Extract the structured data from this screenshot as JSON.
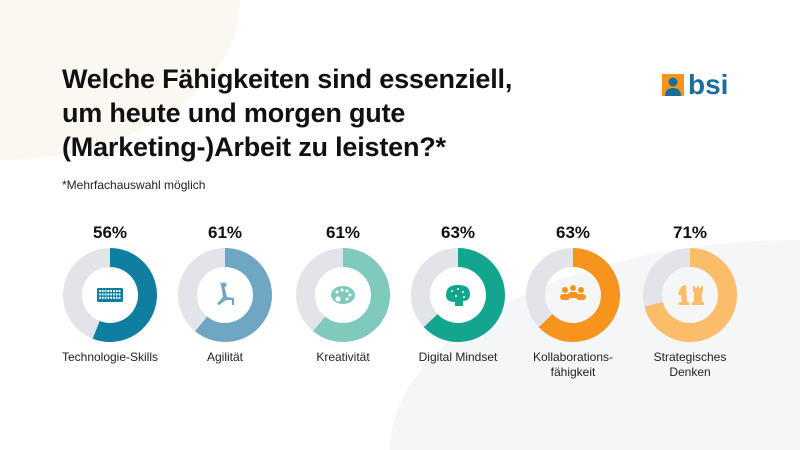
{
  "title_lines": [
    "Welche Fähigkeiten sind essenziell,",
    "um heute und morgen gute",
    "(Marketing-)Arbeit zu leisten?*"
  ],
  "subtitle": "*Mehrfachauswahl möglich",
  "logo": {
    "text": "bsi",
    "colors": {
      "square": "#f7941d",
      "text": "#1a6f9a"
    }
  },
  "chart_data": {
    "type": "donut",
    "unit": "%",
    "track_color": "#e2e4ea",
    "items": [
      {
        "label": [
          "Technologie-Skills"
        ],
        "value": 56,
        "display": "56%",
        "color": "#0e7fa0",
        "icon": "keyboard-icon"
      },
      {
        "label": [
          "Agilität"
        ],
        "value": 61,
        "display": "61%",
        "color": "#6fa6c4",
        "icon": "yoga-pose-icon"
      },
      {
        "label": [
          "Kreativität"
        ],
        "value": 61,
        "display": "61%",
        "color": "#7fcabd",
        "icon": "paint-palette-icon"
      },
      {
        "label": [
          "Digital Mindset"
        ],
        "value": 63,
        "display": "63%",
        "color": "#14a58e",
        "icon": "brain-network-icon"
      },
      {
        "label": [
          "Kollaborations-",
          "fähigkeit"
        ],
        "value": 63,
        "display": "63%",
        "color": "#f7941d",
        "icon": "team-icon"
      },
      {
        "label": [
          "Strategisches",
          "Denken"
        ],
        "value": 71,
        "display": "71%",
        "color": "#fbbd6a",
        "icon": "chess-pieces-icon"
      }
    ]
  }
}
